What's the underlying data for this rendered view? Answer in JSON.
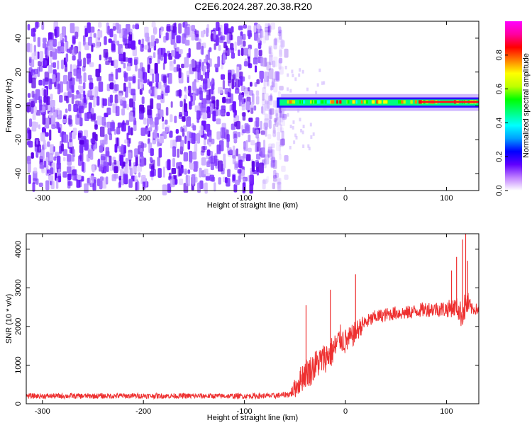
{
  "figure": {
    "title": "C2E6.2024.287.20.38.R20"
  },
  "chart_data": [
    {
      "type": "heatmap",
      "xlabel": "Height of straight line (km)",
      "ylabel": "Frequency (Hz)",
      "xlim": [
        -316,
        132
      ],
      "ylim": [
        -50,
        50
      ],
      "xticks": [
        -300,
        -200,
        -100,
        0,
        100
      ],
      "yticks": [
        -40,
        -20,
        0,
        20,
        40
      ],
      "colorbar": {
        "label": "Normalized spectral amplitude",
        "range": [
          0,
          1
        ],
        "ticks": [
          "0.0",
          "0.2",
          "0.4",
          "0.6",
          "0.8"
        ],
        "colors": [
          "#ffffff",
          "#c080ff",
          "#6000ff",
          "#0000ff",
          "#00a0ff",
          "#00ffff",
          "#00ff80",
          "#00ff00",
          "#c0ff00",
          "#ffff00",
          "#ff8000",
          "#ff0000",
          "#ff00a0",
          "#ff00ff"
        ]
      },
      "regions": [
        {
          "x_range": [
            -316,
            -55
          ],
          "freq_range": [
            -50,
            50
          ],
          "amplitude": 0.05,
          "note_color": "#8040ff"
        },
        {
          "x_range": [
            -68,
            132
          ],
          "freq_center": 2,
          "freq_halfwidth": 5,
          "amplitude": 0.45
        },
        {
          "x_range": [
            75,
            132
          ],
          "freq_center": 2,
          "freq_halfwidth": 2,
          "amplitude": 0.85
        }
      ]
    },
    {
      "type": "line",
      "xlabel": "Height of straight line (km)",
      "ylabel": "SNR (10 * v/v)",
      "xlim": [
        -316,
        132
      ],
      "ylim": [
        0,
        4400
      ],
      "xticks": [
        -300,
        -200,
        -100,
        0,
        100
      ],
      "yticks": [
        0,
        1000,
        2000,
        3000,
        4000
      ],
      "series": [
        {
          "color": "#ee3030",
          "x": [
            -316,
            -300,
            -250,
            -200,
            -150,
            -100,
            -70,
            -55,
            -50,
            -45,
            -40,
            -35,
            -30,
            -25,
            -20,
            -15,
            -10,
            -5,
            0,
            5,
            10,
            15,
            20,
            30,
            40,
            50,
            60,
            70,
            80,
            90,
            100,
            110,
            115,
            120,
            125,
            132
          ],
          "y": [
            200,
            200,
            200,
            205,
            200,
            200,
            205,
            250,
            400,
            600,
            800,
            850,
            1000,
            1100,
            1200,
            1300,
            1450,
            1700,
            1600,
            1700,
            1850,
            2000,
            2100,
            2250,
            2300,
            2350,
            2350,
            2400,
            2450,
            2450,
            2450,
            2500,
            2300,
            2600,
            2450,
            2450
          ],
          "noise": [
            70,
            70,
            70,
            70,
            70,
            70,
            70,
            80,
            250,
            350,
            400,
            400,
            400,
            400,
            400,
            400,
            400,
            350,
            350,
            300,
            300,
            250,
            200,
            180,
            180,
            180,
            180,
            180,
            200,
            200,
            220,
            250,
            350,
            400,
            150,
            150
          ],
          "spikes": [
            {
              "x": -39,
              "y": 2550
            },
            {
              "x": -15,
              "y": 2950
            },
            {
              "x": 10,
              "y": 3350
            },
            {
              "x": 105,
              "y": 3450
            },
            {
              "x": 110,
              "y": 3800
            },
            {
              "x": 116,
              "y": 4250
            },
            {
              "x": 119,
              "y": 4400
            },
            {
              "x": 121,
              "y": 3700
            }
          ]
        }
      ]
    }
  ]
}
